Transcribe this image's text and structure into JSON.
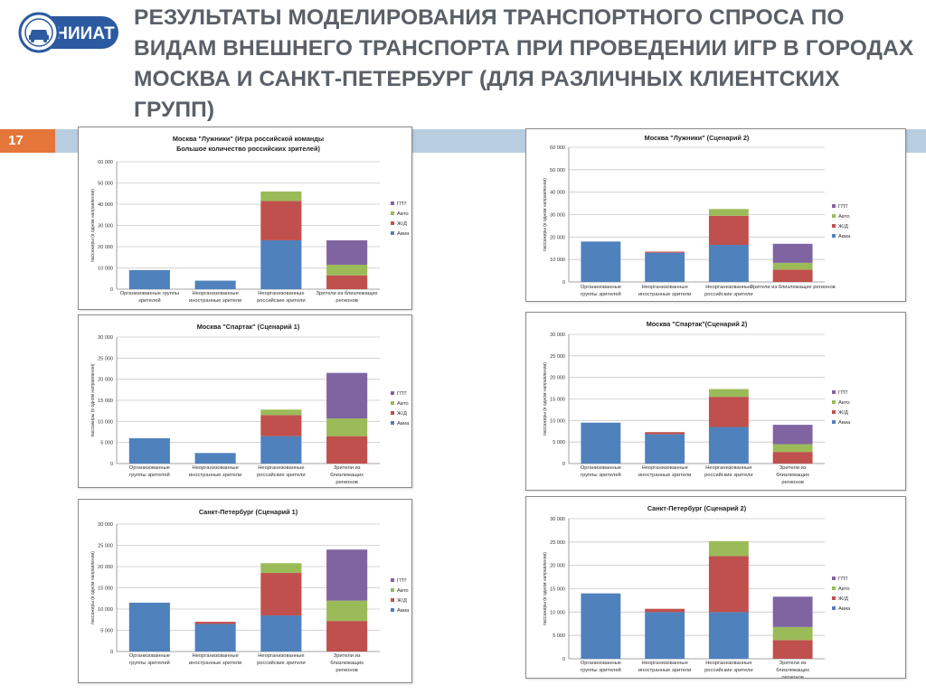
{
  "header": {
    "logo_text": "НИИАТ",
    "title": "РЕЗУЛЬТАТЫ МОДЕЛИРОВАНИЯ ТРАНСПОРТНОГО СПРОСА ПО ВИДАМ ВНЕШНЕГО ТРАНСПОРТА ПРИ ПРОВЕДЕНИИ ИГР В ГОРОДАХ МОСКВА И САНКТ-ПЕТЕРБУРГ (ДЛЯ РАЗЛИЧНЫХ КЛИЕНТСКИХ ГРУПП)",
    "page_number": "17"
  },
  "colors": {
    "avia": "#4f81bd",
    "zhd": "#c0504d",
    "avto": "#9bbb59",
    "gpt": "#8064a2"
  },
  "chart_data": [
    {
      "type": "bar",
      "stacked": true,
      "title": [
        "Москва \"Лужники\" (Игра российской команды",
        "Большое количество российских зрителей)"
      ],
      "ylabel": "пассажиры (в одном направлении)",
      "ylim": [
        0,
        60000
      ],
      "yticks": [
        "0",
        "10 000",
        "20 000",
        "30 000",
        "40 000",
        "50 000",
        "60 000"
      ],
      "categories": [
        [
          "Организованные группы",
          "зрителей"
        ],
        [
          "Неорганизованные",
          "иностранные зрители"
        ],
        [
          "Неорганизованные",
          "российские зрители"
        ],
        [
          "Зрители из близлежащих",
          "регионов"
        ]
      ],
      "legend": [
        "ГПТ",
        "Авто",
        "Ж/Д",
        "Авиа"
      ],
      "series": [
        {
          "name": "Авиа",
          "values": [
            9000,
            4000,
            23000,
            0
          ]
        },
        {
          "name": "Ж/Д",
          "values": [
            0,
            0,
            18500,
            6500
          ]
        },
        {
          "name": "Авто",
          "values": [
            0,
            0,
            4500,
            5000
          ]
        },
        {
          "name": "ГПТ",
          "values": [
            0,
            0,
            0,
            11500
          ]
        }
      ]
    },
    {
      "type": "bar",
      "stacked": true,
      "title": [
        "Москва \"Лужники\" (Сценарий 2)"
      ],
      "ylabel": "пассажиры (в одном направлении)",
      "ylim": [
        0,
        60000
      ],
      "yticks": [
        "0",
        "10 000",
        "20 000",
        "30 000",
        "40 000",
        "50 000",
        "60 000"
      ],
      "categories": [
        [
          "Организованные",
          "группы зрителей"
        ],
        [
          "Неорганизованные",
          "иностранные зрители"
        ],
        [
          "Неорганизованные",
          "российские зрители"
        ],
        [
          "Зрители из близлежащих регионов"
        ]
      ],
      "legend": [
        "ГПТ",
        "Авто",
        "Ж/Д",
        "Авиа"
      ],
      "series": [
        {
          "name": "Авиа",
          "values": [
            18000,
            13000,
            16500,
            0
          ]
        },
        {
          "name": "Ж/Д",
          "values": [
            0,
            500,
            13000,
            5500
          ]
        },
        {
          "name": "Авто",
          "values": [
            0,
            0,
            3000,
            3000
          ]
        },
        {
          "name": "ГПТ",
          "values": [
            0,
            0,
            0,
            8500
          ]
        }
      ]
    },
    {
      "type": "bar",
      "stacked": true,
      "title": [
        "Москва \"Спартак\" (Сценарий 1)"
      ],
      "ylabel": "пассажиры (в одном направлении)",
      "ylim": [
        0,
        30000
      ],
      "yticks": [
        "0",
        "5 000",
        "10 000",
        "15 000",
        "20 000",
        "25 000",
        "30 000"
      ],
      "categories": [
        [
          "Организованные",
          "группы зрителей"
        ],
        [
          "Неорганизованные",
          "иностранные зрители"
        ],
        [
          "Неорганизованные",
          "российские зрители"
        ],
        [
          "Зрители из",
          "близлежащих",
          "регионов"
        ]
      ],
      "legend": [
        "ГПТ",
        "Авто",
        "Ж/Д",
        "Авиа"
      ],
      "series": [
        {
          "name": "Авиа",
          "values": [
            6000,
            2500,
            6500,
            0
          ]
        },
        {
          "name": "Ж/Д",
          "values": [
            0,
            0,
            5000,
            6500
          ]
        },
        {
          "name": "Авто",
          "values": [
            0,
            0,
            1300,
            4200
          ]
        },
        {
          "name": "ГПТ",
          "values": [
            0,
            0,
            0,
            10800
          ]
        }
      ]
    },
    {
      "type": "bar",
      "stacked": true,
      "title": [
        "Москва \"Спартак\"(Сценарий 2)"
      ],
      "ylabel": "пассажиры (в одном направлении)",
      "ylim": [
        0,
        30000
      ],
      "yticks": [
        "0",
        "5 000",
        "10 000",
        "15 000",
        "20 000",
        "25 000",
        "30 000"
      ],
      "categories": [
        [
          "Организованные",
          "группы зрителей"
        ],
        [
          "Неорганизованные",
          "иностранные зрители"
        ],
        [
          "Неорганизованные",
          "российские зрители"
        ],
        [
          "Зрители из",
          "близлежащих",
          "регионов"
        ]
      ],
      "legend": [
        "ГПТ",
        "Авто",
        "Ж/Д",
        "Авиа"
      ],
      "series": [
        {
          "name": "Авиа",
          "values": [
            9500,
            6800,
            8500,
            0
          ]
        },
        {
          "name": "Ж/Д",
          "values": [
            0,
            500,
            7000,
            2700
          ]
        },
        {
          "name": "Авто",
          "values": [
            0,
            0,
            1800,
            1800
          ]
        },
        {
          "name": "ГПТ",
          "values": [
            0,
            0,
            0,
            4500
          ]
        }
      ]
    },
    {
      "type": "bar",
      "stacked": true,
      "title": [
        "Санкт-Петербург (Сценарий 1)"
      ],
      "ylabel": "пассажиры (в одном направлении)",
      "ylim": [
        0,
        30000
      ],
      "yticks": [
        "0",
        "5 000",
        "10 000",
        "15 000",
        "20 000",
        "25 000",
        "30 000"
      ],
      "categories": [
        [
          "Организованные",
          "группы зрителей"
        ],
        [
          "Неорганизованные",
          "иностранные зрители"
        ],
        [
          "Неорганизованные",
          "российские зрители"
        ],
        [
          "Зрители из",
          "близлежащих",
          "регионов"
        ]
      ],
      "legend": [
        "ГПТ",
        "Авто",
        "Ж/Д",
        "Авиа"
      ],
      "series": [
        {
          "name": "Авиа",
          "values": [
            11500,
            6500,
            8500,
            0
          ]
        },
        {
          "name": "Ж/Д",
          "values": [
            0,
            500,
            10000,
            7200
          ]
        },
        {
          "name": "Авто",
          "values": [
            0,
            0,
            2300,
            4800
          ]
        },
        {
          "name": "ГПТ",
          "values": [
            0,
            0,
            0,
            12000
          ]
        }
      ]
    },
    {
      "type": "bar",
      "stacked": true,
      "title": [
        "Санкт-Петербург (Сценарий 2)"
      ],
      "ylabel": "пассажиры (в одном направлении)",
      "ylim": [
        0,
        30000
      ],
      "yticks": [
        "0",
        "5 000",
        "10 000",
        "15 000",
        "20 000",
        "25 000",
        "30 000"
      ],
      "categories": [
        [
          "Организованные",
          "группы зрителей"
        ],
        [
          "Неорганизованные",
          "иностранные зрители"
        ],
        [
          "Неорганизованные",
          "российские зрители"
        ],
        [
          "Зрители из",
          "близлежащих",
          "регионов"
        ]
      ],
      "legend": [
        "ГПТ",
        "Авто",
        "Ж/Д",
        "Авиа"
      ],
      "series": [
        {
          "name": "Авиа",
          "values": [
            14000,
            10000,
            10000,
            0
          ]
        },
        {
          "name": "Ж/Д",
          "values": [
            0,
            700,
            12000,
            4000
          ]
        },
        {
          "name": "Авто",
          "values": [
            0,
            0,
            3200,
            2800
          ]
        },
        {
          "name": "ГПТ",
          "values": [
            0,
            0,
            0,
            6500
          ]
        }
      ]
    }
  ]
}
